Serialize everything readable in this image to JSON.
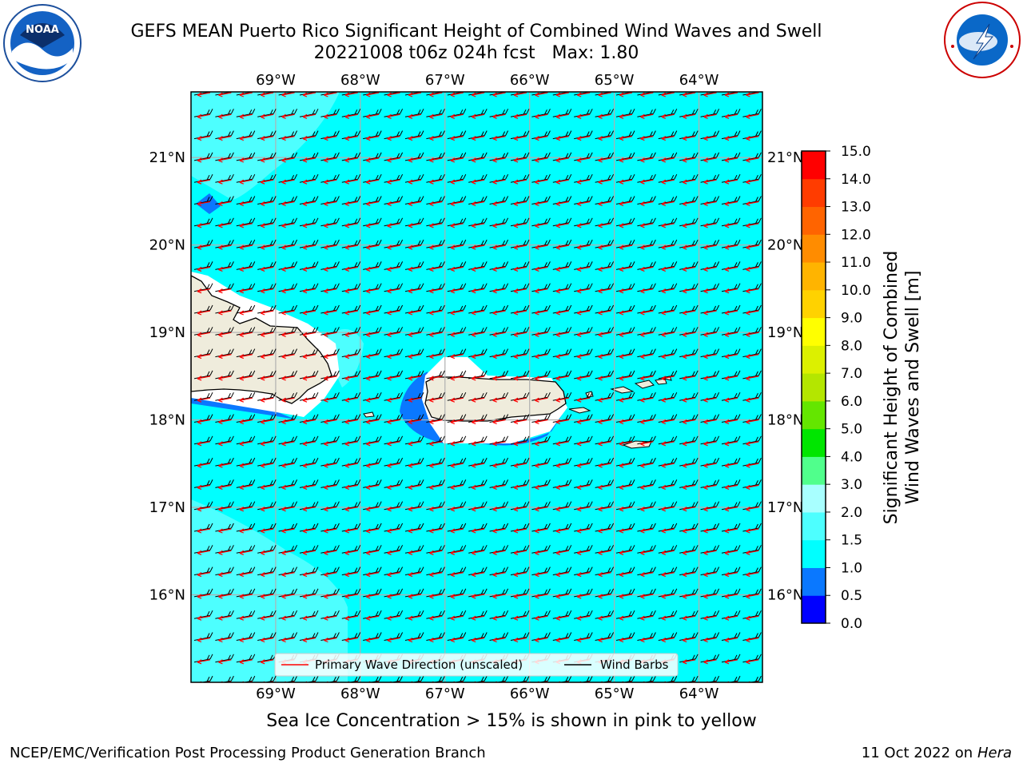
{
  "header": {
    "title_line1": "GEFS MEAN Puerto Rico Significant Height of Combined Wind Waves and Swell",
    "title_line2": "20221008 t06z 024h fcst   Max: 1.80"
  },
  "logos": {
    "noaa": {
      "center_text": "NOAA",
      "ring_text": "NATIONAL OCEANIC AND ATMOSPHERIC ADMINISTRATION · U.S. DEPARTMENT OF COMMERCE"
    },
    "nws": {
      "ring_text": "NATIONAL WEATHER SERVICE"
    }
  },
  "map": {
    "lon_labels": [
      "69°W",
      "68°W",
      "67°W",
      "66°W",
      "65°W",
      "64°W"
    ],
    "lat_labels": [
      "21°N",
      "20°N",
      "19°N",
      "18°N",
      "17°N",
      "16°N"
    ],
    "extent": {
      "lon_min": -70.0,
      "lon_max": -63.25,
      "lat_min": 15.0,
      "lat_max": 21.75
    },
    "legend": {
      "wave_direction": "Primary Wave Direction (unscaled)",
      "wind_barbs": "Wind Barbs",
      "wave_color": "#ff0000",
      "barb_color": "#000000"
    },
    "land_color": "#efecdc",
    "field_color": "#00ffff"
  },
  "colorbar": {
    "label_line1": "Significant Height of Combined",
    "label_line2": "Wind Waves and Swell [m]",
    "ticks": [
      "0.0",
      "0.5",
      "1.0",
      "1.5",
      "2.0",
      "3.0",
      "4.0",
      "5.0",
      "6.0",
      "7.0",
      "8.0",
      "9.0",
      "10.0",
      "11.0",
      "12.0",
      "13.0",
      "14.0",
      "15.0"
    ],
    "colors": [
      "#0000ff",
      "#0a78ff",
      "#00ffff",
      "#4dffff",
      "#a8ffff",
      "#50ff8c",
      "#00e600",
      "#64e600",
      "#b4e600",
      "#dcf000",
      "#ffff00",
      "#ffd200",
      "#ffb400",
      "#ff8c00",
      "#ff6400",
      "#ff3c00",
      "#ff0000"
    ]
  },
  "notes": {
    "ice": "Sea Ice Concentration > 15% is shown in pink to yellow"
  },
  "footer": {
    "left": "NCEP/EMC/Verification Post Processing Product Generation Branch",
    "right_date": "11 Oct 2022 on",
    "right_host": "Hera"
  }
}
